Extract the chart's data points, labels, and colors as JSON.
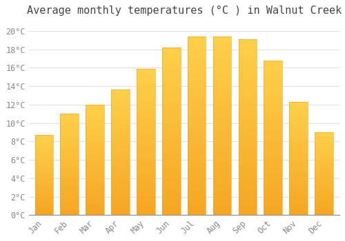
{
  "title": "Average monthly temperatures (°C ) in Walnut Creek",
  "months": [
    "Jan",
    "Feb",
    "Mar",
    "Apr",
    "May",
    "Jun",
    "Jul",
    "Aug",
    "Sep",
    "Oct",
    "Nov",
    "Dec"
  ],
  "values": [
    8.7,
    11.0,
    12.0,
    13.6,
    15.9,
    18.2,
    19.4,
    19.4,
    19.1,
    16.8,
    12.3,
    9.0
  ],
  "bar_color_top": "#FFD04A",
  "bar_color_bottom": "#F5A623",
  "bar_edge_color": "#E8A020",
  "background_color": "#FFFFFF",
  "plot_bg_color": "#FFFFFF",
  "grid_color": "#E0E0E0",
  "text_color": "#888888",
  "title_color": "#444444",
  "ylim": [
    0,
    21
  ],
  "ytick_step": 2,
  "title_fontsize": 11,
  "tick_fontsize": 8.5,
  "font_family": "monospace"
}
